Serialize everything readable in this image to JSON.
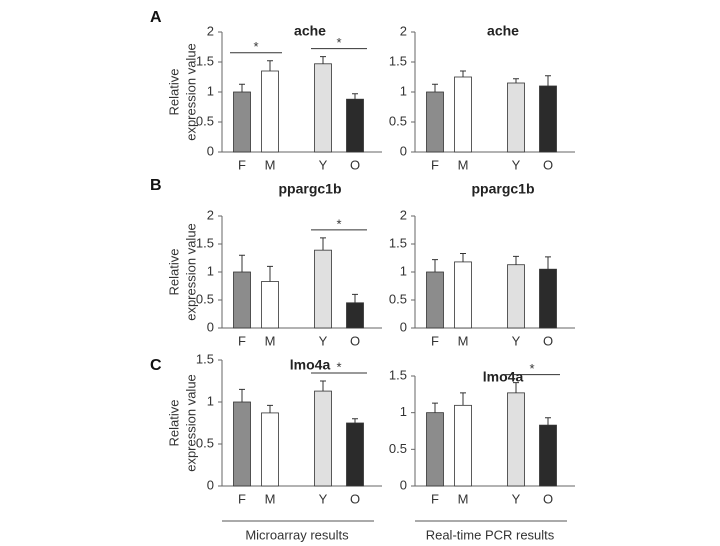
{
  "chart_data": [
    {
      "type": "bar",
      "panel": "A",
      "title": "ache",
      "ylabel": [
        "Relative",
        "expression value"
      ],
      "categories": [
        "F",
        "M",
        "Y",
        "O"
      ],
      "values": [
        1.0,
        1.35,
        1.47,
        0.88
      ],
      "errors": [
        0.13,
        0.17,
        0.12,
        0.09
      ],
      "colors": [
        "#8c8c8c",
        "#ffffff",
        "#e0e0e0",
        "#2b2b2b"
      ],
      "ylim": [
        0,
        2
      ],
      "yticks": [
        0,
        0.5,
        1,
        1.5,
        2
      ],
      "significance": [
        {
          "categories": [
            "F",
            "M"
          ],
          "label": "*"
        },
        {
          "categories": [
            "Y",
            "O"
          ],
          "label": "*"
        }
      ]
    },
    {
      "type": "bar",
      "title": "ache",
      "categories": [
        "F",
        "M",
        "Y",
        "O"
      ],
      "values": [
        1.0,
        1.25,
        1.15,
        1.1
      ],
      "errors": [
        0.13,
        0.1,
        0.07,
        0.17
      ],
      "colors": [
        "#8c8c8c",
        "#ffffff",
        "#e0e0e0",
        "#2b2b2b"
      ],
      "ylim": [
        0,
        2
      ],
      "yticks": [
        0,
        0.5,
        1,
        1.5,
        2
      ]
    },
    {
      "type": "bar",
      "panel": "B",
      "title": "ppargc1b",
      "ylabel": [
        "Relative",
        "expression value"
      ],
      "categories": [
        "F",
        "M",
        "Y",
        "O"
      ],
      "values": [
        1.0,
        0.83,
        1.39,
        0.45
      ],
      "errors": [
        0.3,
        0.27,
        0.22,
        0.15
      ],
      "colors": [
        "#8c8c8c",
        "#ffffff",
        "#e0e0e0",
        "#2b2b2b"
      ],
      "ylim": [
        0,
        2
      ],
      "yticks": [
        0,
        0.5,
        1,
        1.5,
        2
      ],
      "significance": [
        {
          "categories": [
            "Y",
            "O"
          ],
          "label": "*"
        }
      ]
    },
    {
      "type": "bar",
      "title": "ppargc1b",
      "categories": [
        "F",
        "M",
        "Y",
        "O"
      ],
      "values": [
        1.0,
        1.18,
        1.13,
        1.05
      ],
      "errors": [
        0.22,
        0.15,
        0.15,
        0.22
      ],
      "colors": [
        "#8c8c8c",
        "#ffffff",
        "#e0e0e0",
        "#2b2b2b"
      ],
      "ylim": [
        0,
        2
      ],
      "yticks": [
        0,
        0.5,
        1,
        1.5,
        2
      ]
    },
    {
      "type": "bar",
      "panel": "C",
      "title": "lmo4a",
      "ylabel": [
        "Relative",
        "expression value"
      ],
      "categories": [
        "F",
        "M",
        "Y",
        "O"
      ],
      "values": [
        1.0,
        0.87,
        1.13,
        0.75
      ],
      "errors": [
        0.15,
        0.09,
        0.12,
        0.05
      ],
      "colors": [
        "#8c8c8c",
        "#ffffff",
        "#e0e0e0",
        "#2b2b2b"
      ],
      "ylim": [
        0,
        1.5
      ],
      "yticks": [
        0,
        0.5,
        1,
        1.5
      ],
      "significance": [
        {
          "categories": [
            "Y",
            "O"
          ],
          "label": "*"
        }
      ],
      "group_label": "Microarray results"
    },
    {
      "type": "bar",
      "title": "lmo4a",
      "categories": [
        "F",
        "M",
        "Y",
        "O"
      ],
      "values": [
        1.0,
        1.1,
        1.27,
        0.83
      ],
      "errors": [
        0.13,
        0.17,
        0.14,
        0.1
      ],
      "colors": [
        "#8c8c8c",
        "#ffffff",
        "#e0e0e0",
        "#2b2b2b"
      ],
      "ylim": [
        0,
        1.5
      ],
      "yticks": [
        0,
        0.5,
        1,
        1.5
      ],
      "significance": [
        {
          "categories": [
            "Y",
            "O"
          ],
          "label": "*"
        }
      ],
      "group_label": "Real-time PCR results"
    }
  ]
}
